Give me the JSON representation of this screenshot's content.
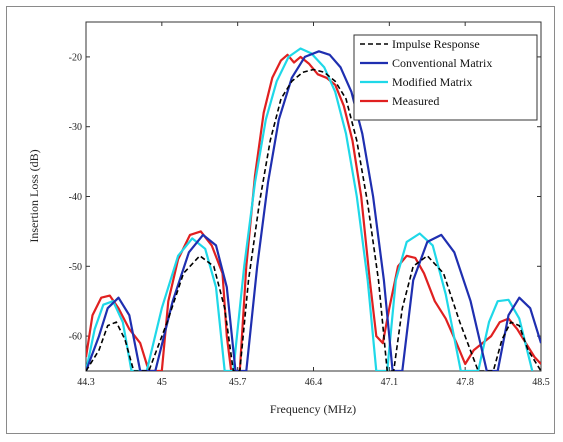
{
  "chart_data": {
    "type": "line",
    "title": "",
    "xlabel": "Frequency (MHz)",
    "ylabel": "Insertion Loss (dB)",
    "xlim": [
      44.3,
      48.5
    ],
    "ylim": [
      -65,
      -15
    ],
    "x_ticks": [
      44.3,
      45,
      45.7,
      46.4,
      47.1,
      47.8,
      48.5
    ],
    "x_tick_labels": [
      "44.3",
      "45",
      "45.7",
      "46.4",
      "47.1",
      "47.8",
      "48.5"
    ],
    "y_ticks": [
      -60,
      -50,
      -40,
      -30,
      -20
    ],
    "y_tick_labels": [
      "-60",
      "-50",
      "-40",
      "-30",
      "-20"
    ],
    "grid": false,
    "legend_position": "top-right",
    "series": [
      {
        "name": "Impulse Response",
        "color": "#000000",
        "style": "dashed",
        "points": [
          [
            44.3,
            -65
          ],
          [
            44.42,
            -62
          ],
          [
            44.5,
            -58.5
          ],
          [
            44.58,
            -58
          ],
          [
            44.66,
            -60.5
          ],
          [
            44.74,
            -65
          ],
          [
            44.88,
            -65
          ],
          [
            45.05,
            -58
          ],
          [
            45.2,
            -51
          ],
          [
            45.35,
            -48.5
          ],
          [
            45.48,
            -50
          ],
          [
            45.58,
            -56
          ],
          [
            45.66,
            -65
          ],
          [
            45.72,
            -65
          ],
          [
            45.8,
            -52
          ],
          [
            45.9,
            -41
          ],
          [
            46.0,
            -32
          ],
          [
            46.1,
            -26
          ],
          [
            46.2,
            -23.5
          ],
          [
            46.3,
            -22.2
          ],
          [
            46.4,
            -21.8
          ],
          [
            46.5,
            -22.2
          ],
          [
            46.6,
            -23.5
          ],
          [
            46.7,
            -26
          ],
          [
            46.8,
            -32
          ],
          [
            46.9,
            -41
          ],
          [
            47.0,
            -52
          ],
          [
            47.08,
            -65
          ],
          [
            47.14,
            -65
          ],
          [
            47.22,
            -56
          ],
          [
            47.32,
            -50
          ],
          [
            47.45,
            -48.5
          ],
          [
            47.6,
            -51
          ],
          [
            47.75,
            -58
          ],
          [
            47.92,
            -65
          ],
          [
            48.06,
            -65
          ],
          [
            48.14,
            -60.5
          ],
          [
            48.22,
            -58
          ],
          [
            48.3,
            -58.5
          ],
          [
            48.38,
            -62
          ],
          [
            48.5,
            -65
          ]
        ]
      },
      {
        "name": "Conventional Matrix",
        "color": "#1f2fb0",
        "style": "solid",
        "points": [
          [
            44.3,
            -65
          ],
          [
            44.42,
            -60
          ],
          [
            44.5,
            -56
          ],
          [
            44.6,
            -54.5
          ],
          [
            44.7,
            -57
          ],
          [
            44.8,
            -65
          ],
          [
            44.94,
            -65
          ],
          [
            45.1,
            -55
          ],
          [
            45.25,
            -48
          ],
          [
            45.38,
            -45.5
          ],
          [
            45.5,
            -47
          ],
          [
            45.6,
            -53
          ],
          [
            45.68,
            -65
          ],
          [
            45.78,
            -65
          ],
          [
            45.88,
            -50
          ],
          [
            45.98,
            -38
          ],
          [
            46.08,
            -29
          ],
          [
            46.2,
            -23
          ],
          [
            46.32,
            -20
          ],
          [
            46.45,
            -19.2
          ],
          [
            46.55,
            -19.7
          ],
          [
            46.65,
            -21.5
          ],
          [
            46.75,
            -25
          ],
          [
            46.85,
            -31
          ],
          [
            46.95,
            -40
          ],
          [
            47.05,
            -52
          ],
          [
            47.13,
            -65
          ],
          [
            47.22,
            -65
          ],
          [
            47.32,
            -52
          ],
          [
            47.45,
            -46.5
          ],
          [
            47.58,
            -45.5
          ],
          [
            47.7,
            -48
          ],
          [
            47.85,
            -55
          ],
          [
            48.0,
            -65
          ],
          [
            48.1,
            -65
          ],
          [
            48.2,
            -57
          ],
          [
            48.3,
            -54.5
          ],
          [
            48.4,
            -56
          ],
          [
            48.5,
            -61
          ]
        ]
      },
      {
        "name": "Modified Matrix",
        "color": "#1fd8e8",
        "style": "solid",
        "points": [
          [
            44.3,
            -65
          ],
          [
            44.38,
            -59
          ],
          [
            44.46,
            -55.5
          ],
          [
            44.55,
            -55
          ],
          [
            44.64,
            -58
          ],
          [
            44.72,
            -65
          ],
          [
            44.86,
            -65
          ],
          [
            45.0,
            -56
          ],
          [
            45.15,
            -48.5
          ],
          [
            45.28,
            -46
          ],
          [
            45.4,
            -47.5
          ],
          [
            45.5,
            -53
          ],
          [
            45.58,
            -65
          ],
          [
            45.66,
            -65
          ],
          [
            45.76,
            -50
          ],
          [
            45.86,
            -38
          ],
          [
            45.96,
            -29
          ],
          [
            46.06,
            -23.5
          ],
          [
            46.17,
            -20
          ],
          [
            46.28,
            -18.8
          ],
          [
            46.38,
            -19.5
          ],
          [
            46.5,
            -21.5
          ],
          [
            46.6,
            -25
          ],
          [
            46.7,
            -31
          ],
          [
            46.8,
            -40
          ],
          [
            46.9,
            -52
          ],
          [
            46.98,
            -65
          ],
          [
            47.08,
            -65
          ],
          [
            47.16,
            -52
          ],
          [
            47.26,
            -46.5
          ],
          [
            47.38,
            -45.3
          ],
          [
            47.5,
            -47
          ],
          [
            47.62,
            -54
          ],
          [
            47.76,
            -65
          ],
          [
            47.92,
            -65
          ],
          [
            48.02,
            -58
          ],
          [
            48.1,
            -55
          ],
          [
            48.2,
            -54.8
          ],
          [
            48.3,
            -57.5
          ],
          [
            48.42,
            -65
          ]
        ]
      },
      {
        "name": "Measured",
        "color": "#e02020",
        "style": "solid",
        "points": [
          [
            44.3,
            -63
          ],
          [
            44.36,
            -57
          ],
          [
            44.44,
            -54.5
          ],
          [
            44.52,
            -54.2
          ],
          [
            44.6,
            -56
          ],
          [
            44.7,
            -59
          ],
          [
            44.8,
            -61
          ],
          [
            44.88,
            -65
          ],
          [
            45.0,
            -65
          ],
          [
            45.06,
            -55
          ],
          [
            45.15,
            -49
          ],
          [
            45.26,
            -45.5
          ],
          [
            45.36,
            -45
          ],
          [
            45.46,
            -47
          ],
          [
            45.56,
            -51
          ],
          [
            45.6,
            -60
          ],
          [
            45.64,
            -65
          ],
          [
            45.72,
            -65
          ],
          [
            45.78,
            -50
          ],
          [
            45.86,
            -37
          ],
          [
            45.94,
            -28
          ],
          [
            46.02,
            -23
          ],
          [
            46.1,
            -20.5
          ],
          [
            46.16,
            -19.7
          ],
          [
            46.22,
            -20.8
          ],
          [
            46.28,
            -20
          ],
          [
            46.36,
            -21
          ],
          [
            46.44,
            -22.5
          ],
          [
            46.52,
            -23
          ],
          [
            46.6,
            -24
          ],
          [
            46.68,
            -27
          ],
          [
            46.76,
            -32
          ],
          [
            46.84,
            -40
          ],
          [
            46.92,
            -52
          ],
          [
            46.98,
            -60
          ],
          [
            47.04,
            -61
          ],
          [
            47.1,
            -56
          ],
          [
            47.18,
            -50
          ],
          [
            47.26,
            -48.5
          ],
          [
            47.34,
            -48.8
          ],
          [
            47.42,
            -51
          ],
          [
            47.52,
            -55
          ],
          [
            47.62,
            -57.5
          ],
          [
            47.72,
            -61
          ],
          [
            47.8,
            -64
          ],
          [
            47.88,
            -62
          ],
          [
            47.96,
            -61
          ],
          [
            48.04,
            -60
          ],
          [
            48.12,
            -58
          ],
          [
            48.2,
            -57.5
          ],
          [
            48.28,
            -59
          ],
          [
            48.36,
            -61
          ],
          [
            48.44,
            -63
          ],
          [
            48.5,
            -64
          ]
        ]
      }
    ]
  }
}
